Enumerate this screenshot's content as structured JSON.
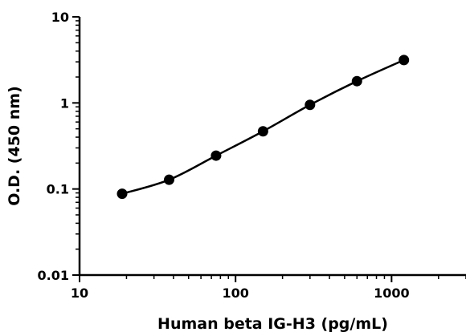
{
  "chart_data": {
    "type": "scatter",
    "title": "",
    "xlabel": "Human beta IG-H3 (pg/mL)",
    "ylabel": "O.D. (450 nm)",
    "x_scale": "log",
    "y_scale": "log",
    "xlim": [
      10,
      3000
    ],
    "ylim": [
      0.01,
      10
    ],
    "x_ticks": [
      10,
      100,
      1000
    ],
    "x_tick_labels": [
      "10",
      "100",
      "1000"
    ],
    "y_ticks": [
      0.01,
      0.1,
      1,
      10
    ],
    "y_tick_labels": [
      "0.01",
      "0.1",
      "1",
      "10"
    ],
    "grid": false,
    "legend": "none",
    "fit_curve": true,
    "colors": {
      "points": "#000000",
      "curve": "#000000",
      "axes": "#000000"
    },
    "series": [
      {
        "x": [
          18.75,
          37.5,
          75,
          150,
          300,
          600,
          1200
        ],
        "y": [
          0.088,
          0.128,
          0.244,
          0.468,
          0.949,
          1.79,
          3.15
        ]
      }
    ]
  }
}
